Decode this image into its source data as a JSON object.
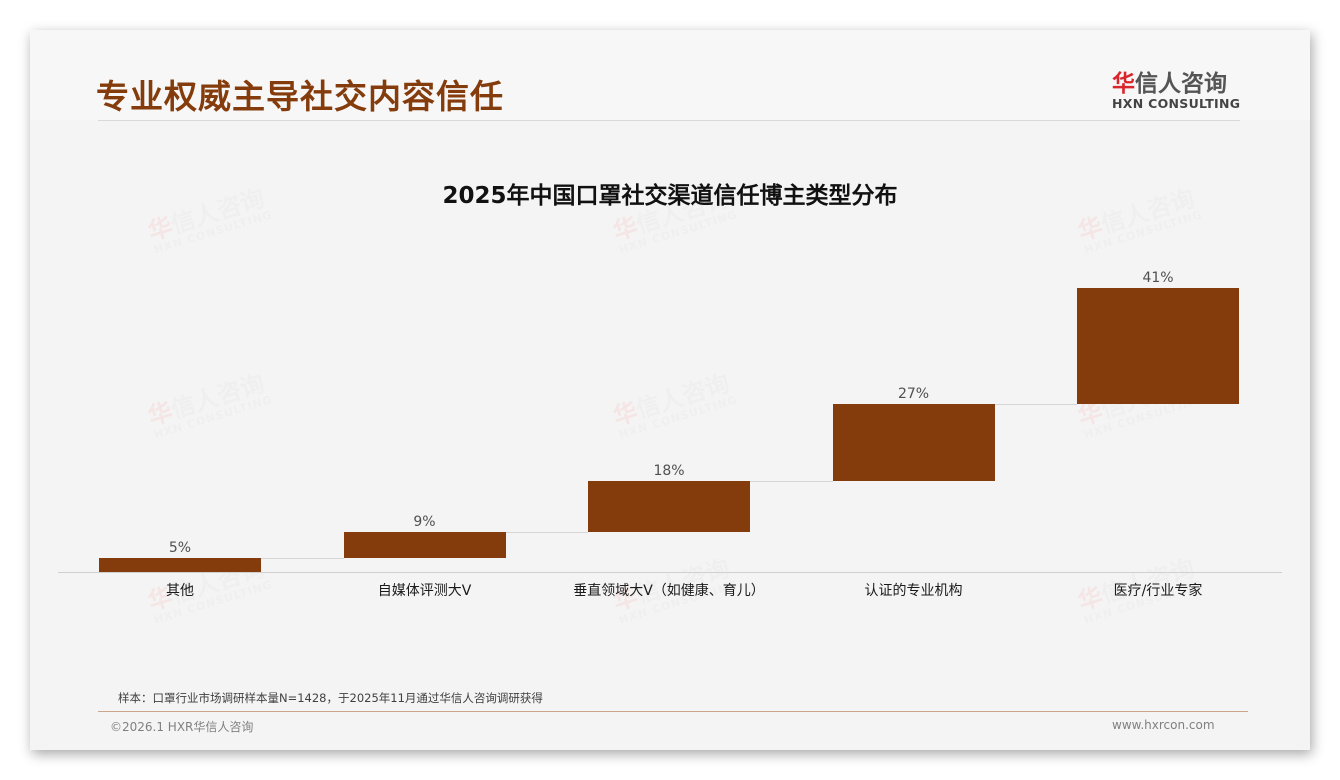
{
  "header": {
    "title": "专业权威主导社交内容信任",
    "logo": {
      "cn_red": "华",
      "cn_rest": "信人咨询",
      "en": "HXN CONSULTING"
    }
  },
  "watermark": {
    "cn_red": "华",
    "cn_rest": "信人咨询",
    "en": "HXN CONSULTING"
  },
  "chart_data": {
    "type": "bar",
    "subtype": "waterfall",
    "title": "2025年中国口罩社交渠道信任博主类型分布",
    "categories": [
      "其他",
      "自媒体评测大V",
      "垂直领域大V（如健康、育儿）",
      "认证的专业机构",
      "医疗/行业专家"
    ],
    "values": [
      5,
      9,
      18,
      27,
      41
    ],
    "value_labels": [
      "5%",
      "9%",
      "18%",
      "27%",
      "41%"
    ],
    "cumulative_start": [
      0,
      5,
      14,
      32,
      59
    ],
    "cumulative_end": [
      5,
      14,
      32,
      59,
      100
    ],
    "unit": "%",
    "xlabel": "",
    "ylabel": "",
    "ylim": [
      0,
      100
    ],
    "grid": false,
    "legend": null,
    "bar_color": "#843c0c"
  },
  "footer": {
    "source": "样本：口罩行业市场调研样本量N=1428，于2025年11月通过华信人咨询调研获得",
    "copyright": "©2026.1 HXR华信人咨询",
    "website": "www.hxrcon.com"
  }
}
